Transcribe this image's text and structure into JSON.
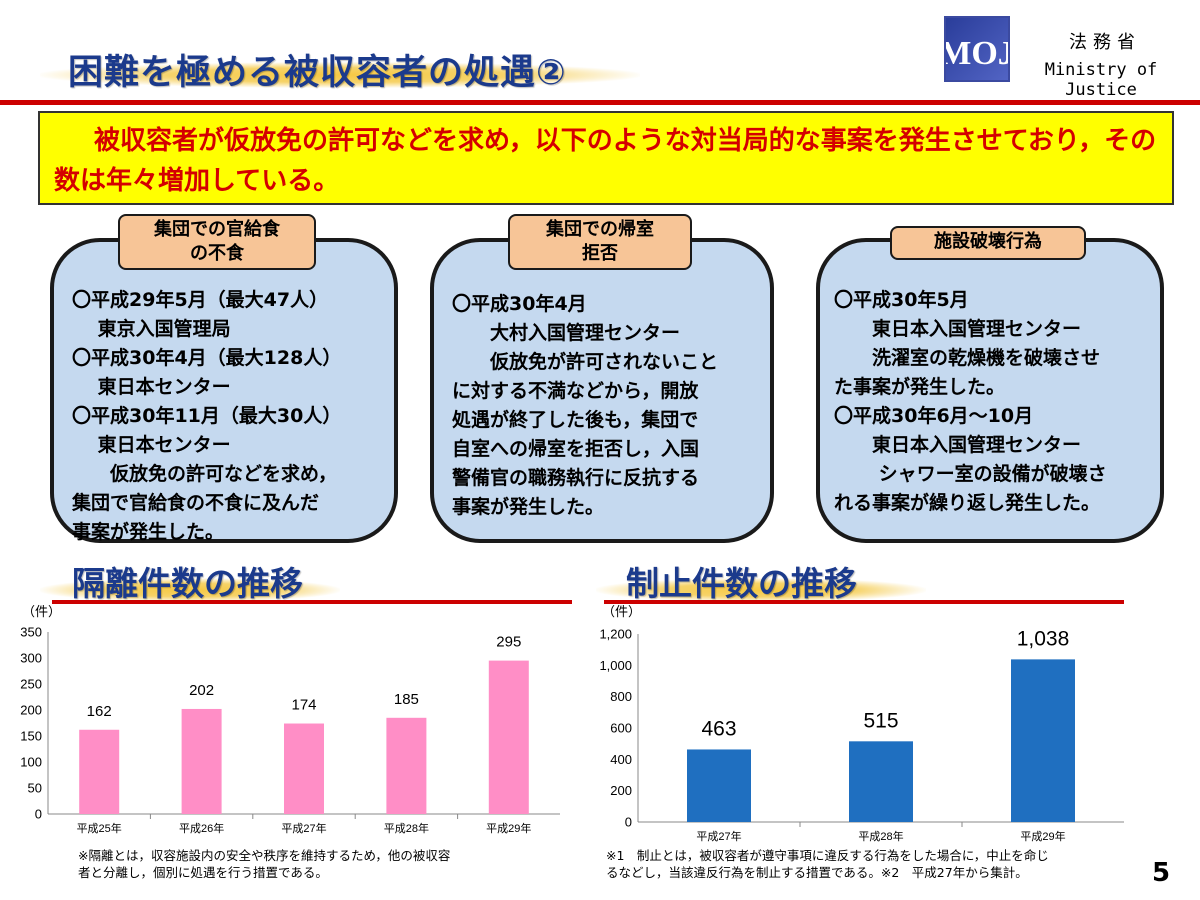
{
  "header": {
    "title": "困難を極める被収容者の処遇②",
    "ministry_jp": "法務省",
    "ministry_en": "Ministry of Justice",
    "logo_letters": "MOJ"
  },
  "statement": "被収容者が仮放免の許可などを求め，以下のような対当局的な事案を発生させており，その数は年々増加している。",
  "cards": [
    {
      "tag": "集団での官給食\nの不食",
      "body": "〇平成29年5月（最大47人）\n　 東京入国管理局\n〇平成30年4月（最大128人）\n　 東日本センター\n〇平成30年11月（最大30人）\n　 東日本センター\n　　仮放免の許可などを求め，\n集団で官給食の不食に及んだ\n事案が発生した。"
    },
    {
      "tag": "集団での帰室\n拒否",
      "body": "〇平成30年4月\n　　大村入国管理センター\n　　仮放免が許可されないこと\nに対する不満などから，開放\n処遇が終了した後も，集団で\n自室への帰室を拒否し，入国\n警備官の職務執行に反抗する\n事案が発生した。"
    },
    {
      "tag": "施設破壊行為",
      "body": "〇平成30年5月\n　　東日本入国管理センター\n　　洗濯室の乾燥機を破壊させ\nた事案が発生した。\n〇平成30年6月～10月\n　　東日本入国管理センター\n　　 シャワー室の設備が破壊さ\nれる事案が繰り返し発生した。"
    }
  ],
  "sections": {
    "left_title": "隔離件数の推移",
    "right_title": "制止件数の推移"
  },
  "chart_data": [
    {
      "type": "bar",
      "unit_label": "（件）",
      "categories": [
        "平成25年",
        "平成26年",
        "平成27年",
        "平成28年",
        "平成29年"
      ],
      "values": [
        162,
        202,
        174,
        185,
        295
      ],
      "value_labels": [
        "162",
        "202",
        "174",
        "185",
        "295"
      ],
      "ylim": [
        0,
        350
      ],
      "yticks": [
        0,
        50,
        100,
        150,
        200,
        250,
        300,
        350
      ],
      "color": "#ff8ec6",
      "grid": false
    },
    {
      "type": "bar",
      "unit_label": "（件）",
      "categories": [
        "平成27年",
        "平成28年",
        "平成29年"
      ],
      "values": [
        463,
        515,
        1038
      ],
      "value_labels": [
        "463",
        "515",
        "1,038"
      ],
      "ylim": [
        0,
        1200
      ],
      "yticks": [
        0,
        200,
        400,
        600,
        800,
        1000,
        1200
      ],
      "color": "#1f6fc0",
      "grid": false
    }
  ],
  "footnotes": {
    "left": "※隔離とは，収容施設内の安全や秩序を維持するため，他の被収容\n者と分離し，個別に処遇を行う措置である。",
    "right": "※1　制止とは，被収容者が遵守事項に違反する行為をした場合に，中止を命じ\nるなどし，当該違反行為を制止する措置である。※2　平成27年から集計。"
  },
  "page_number": "5"
}
